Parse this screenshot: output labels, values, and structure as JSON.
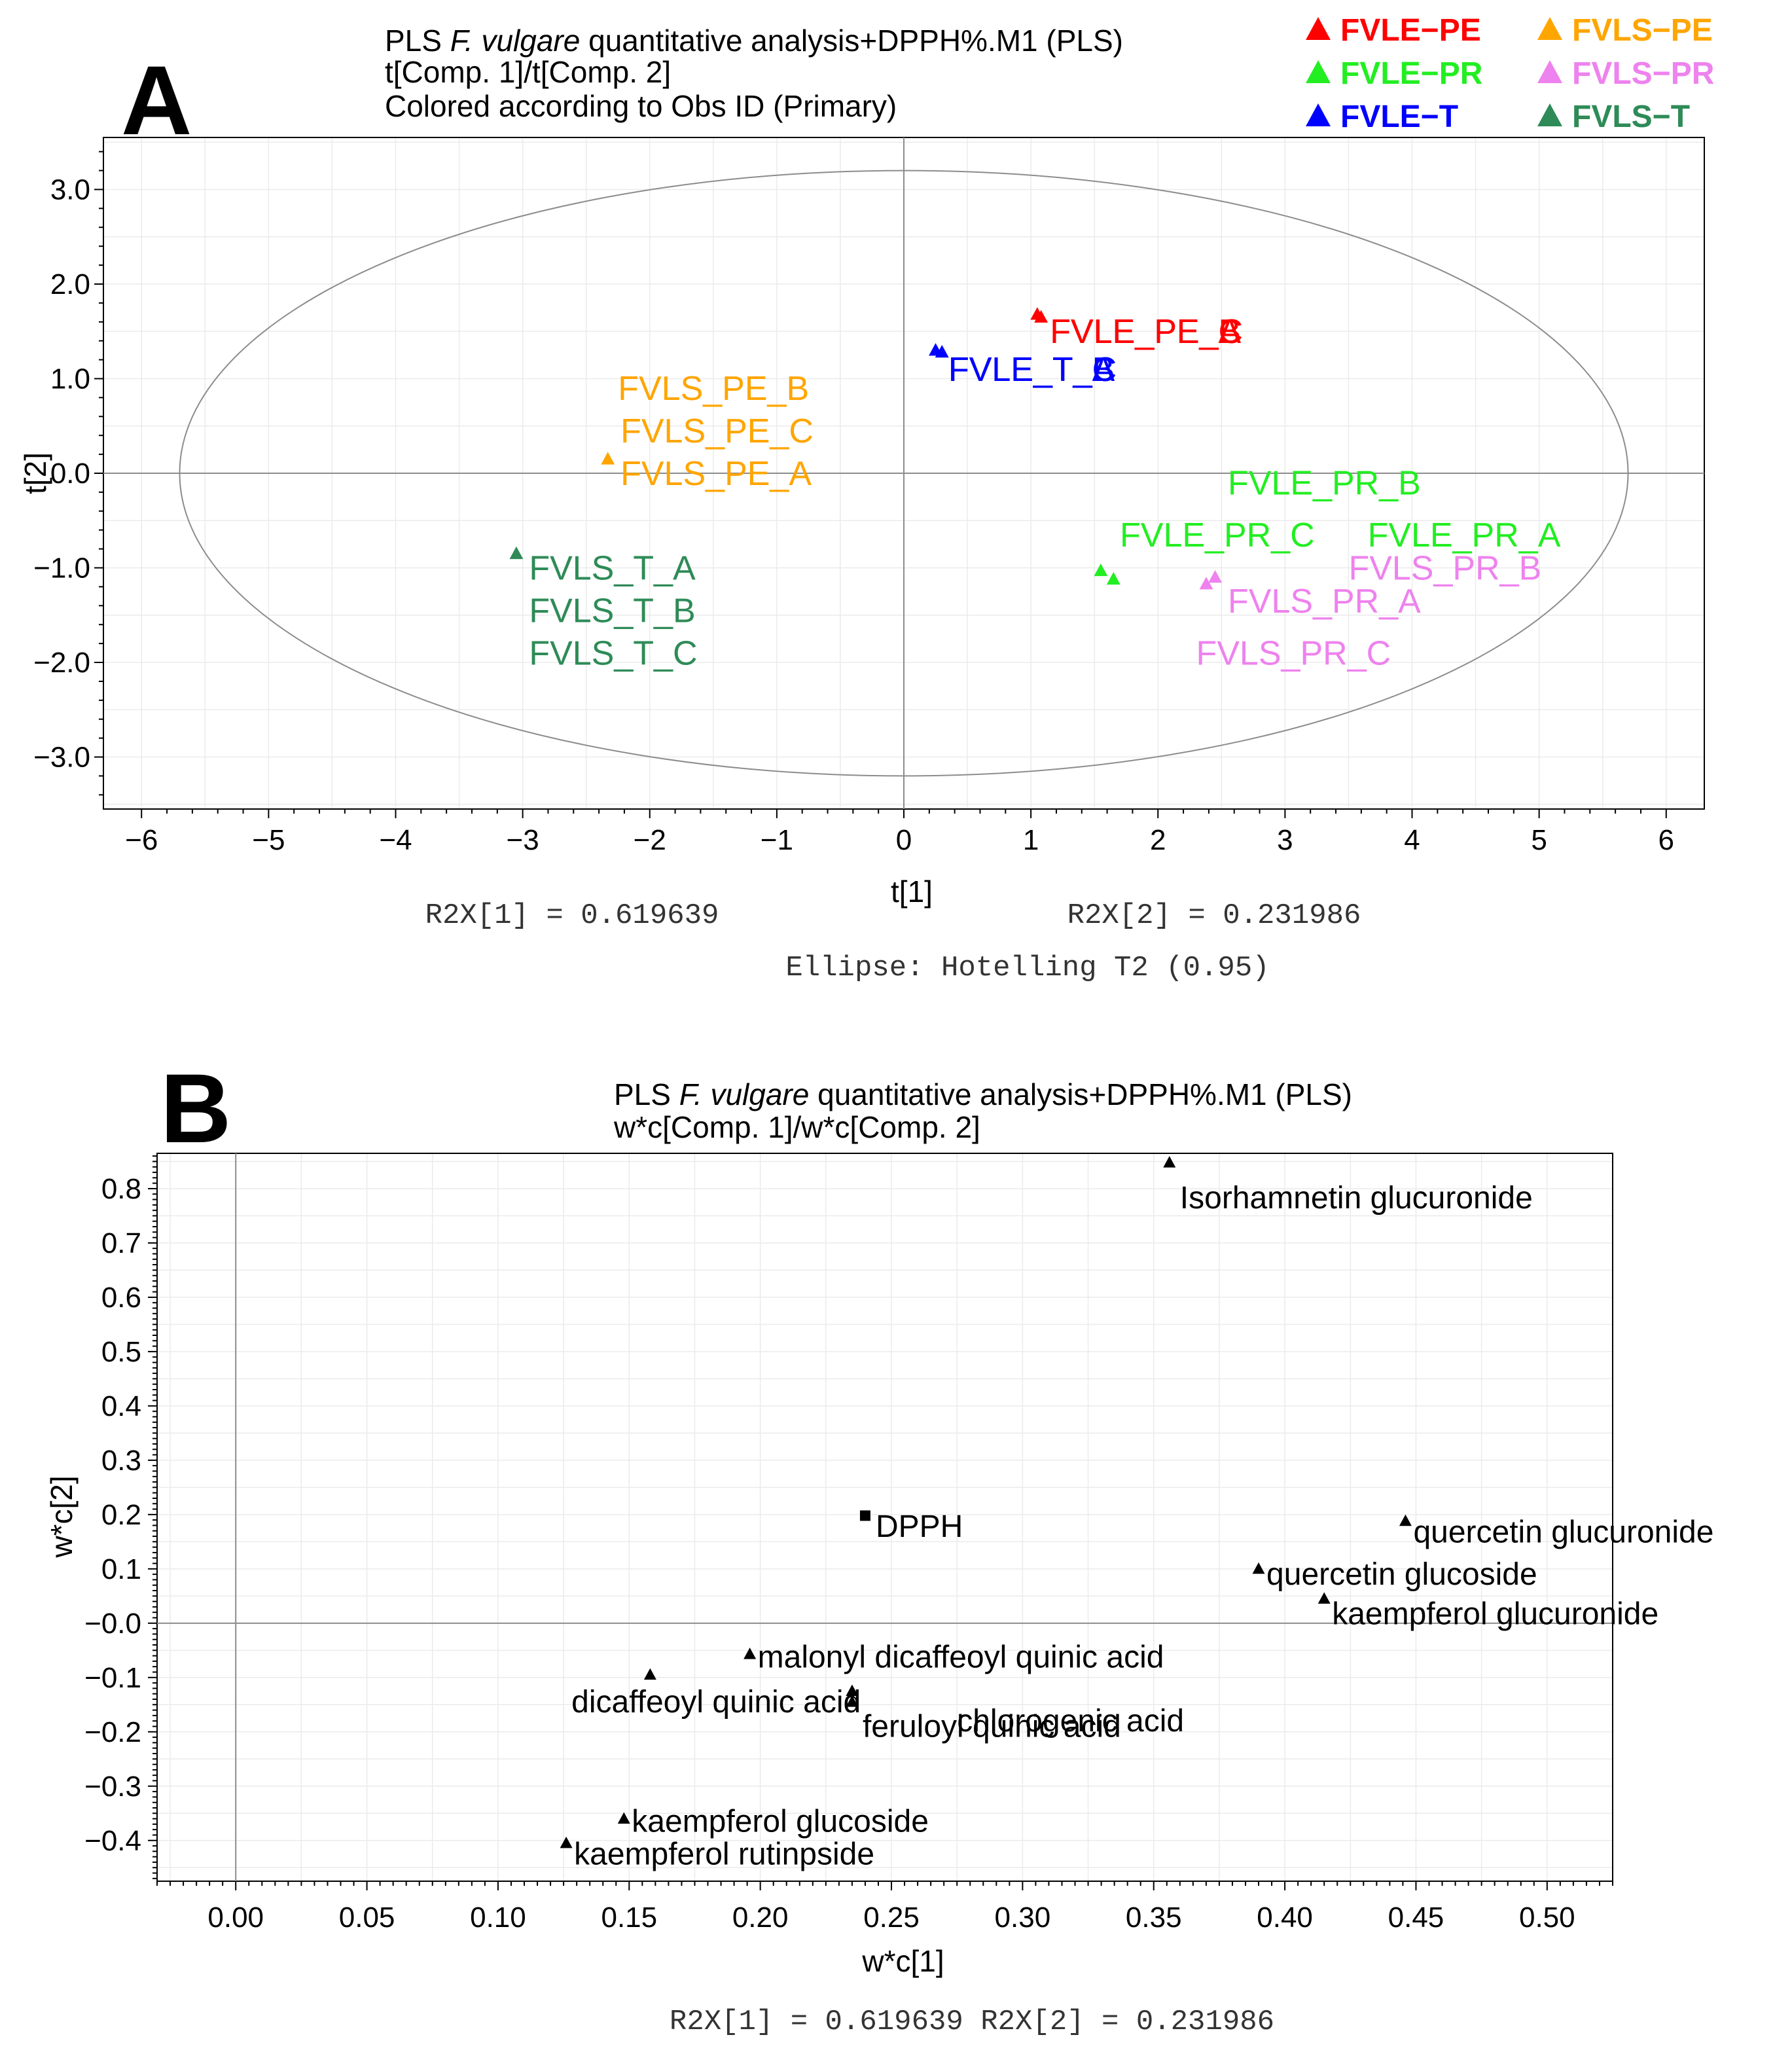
{
  "chart_data": [
    {
      "type": "scatter",
      "panel_letter": "A",
      "title_lines": {
        "prefix": "PLS ",
        "species": "F. vulgare",
        "suffix": " quantitative analysis+DPPH%.M1 (PLS)",
        "line2": "t[Comp. 1]/t[Comp. 2]",
        "line3": "Colored according to Obs ID (Primary)"
      },
      "xlabel": "t[1]",
      "ylabel": "t[2]",
      "xlim": [
        -6.3,
        6.3
      ],
      "ylim": [
        -3.55,
        3.55
      ],
      "xticks": [
        -6,
        -5,
        -4,
        -3,
        -2,
        -1,
        0,
        1,
        2,
        3,
        4,
        5,
        6
      ],
      "yticks": [
        3.0,
        2.0,
        1.0,
        0.0,
        -1.0,
        -2.0,
        -3.0
      ],
      "ytick_labels": [
        "3.0",
        "2.0",
        "1.0",
        "0.0",
        "−1.0",
        "−2.0",
        "−3.0"
      ],
      "xtick_labels": [
        "−6",
        "−5",
        "−4",
        "−3",
        "−2",
        "−1",
        "0",
        "1",
        "2",
        "3",
        "4",
        "5",
        "6"
      ],
      "ellipse": {
        "rx": 5.7,
        "ry": 3.2
      },
      "r2x1": "R2X[1] = 0.619639",
      "r2x2": "R2X[2] = 0.231986",
      "ellipse_note": "Ellipse: Hotelling T2 (0.95)",
      "grid": true,
      "legend_position": "top-right",
      "legend": [
        {
          "name": "FVLE−PE",
          "color": "#ff0000"
        },
        {
          "name": "FVLS−PE",
          "color": "#ffa500"
        },
        {
          "name": "FVLE−PR",
          "color": "#22ee22"
        },
        {
          "name": "FVLS−PR",
          "color": "#ee82ee"
        },
        {
          "name": "FVLE−T",
          "color": "#0000ff"
        },
        {
          "name": "FVLS−T",
          "color": "#2e8b57"
        }
      ],
      "points": [
        {
          "x": 1.05,
          "y": 1.68,
          "color": "#ff0000"
        },
        {
          "x": 1.08,
          "y": 1.65,
          "color": "#ff0000"
        },
        {
          "x": 0.25,
          "y": 1.3,
          "color": "#0000ff"
        },
        {
          "x": 0.3,
          "y": 1.28,
          "color": "#0000ff"
        },
        {
          "x": -2.33,
          "y": 0.15,
          "color": "#ffa500"
        },
        {
          "x": -3.05,
          "y": -0.85,
          "color": "#2e8b57"
        },
        {
          "x": 1.55,
          "y": -1.03,
          "color": "#22ee22"
        },
        {
          "x": 1.65,
          "y": -1.12,
          "color": "#22ee22"
        },
        {
          "x": 2.38,
          "y": -1.17,
          "color": "#ee82ee"
        },
        {
          "x": 2.45,
          "y": -1.1,
          "color": "#ee82ee"
        }
      ],
      "labels": [
        {
          "text": "FVLE_PE_B",
          "x": 1.15,
          "y": 1.5,
          "color": "#ff0000"
        },
        {
          "text": "FVLE_PE_A",
          "x": 1.15,
          "y": 1.5,
          "color": "#ff0000"
        },
        {
          "text": "FVLE_PE_C",
          "x": 1.15,
          "y": 1.5,
          "color": "#ff0000"
        },
        {
          "text": "FVLE_T_A",
          "x": 0.35,
          "y": 1.1,
          "color": "#0000ff"
        },
        {
          "text": "FVLE_T_B",
          "x": 0.35,
          "y": 1.1,
          "color": "#0000ff"
        },
        {
          "text": "FVLE_T_C",
          "x": 0.35,
          "y": 1.1,
          "color": "#0000ff"
        },
        {
          "text": "FVLS_PE_B",
          "x": -2.25,
          "y": 0.9,
          "color": "#ffa500"
        },
        {
          "text": "FVLS_PE_C",
          "x": -2.23,
          "y": 0.45,
          "color": "#ffa500"
        },
        {
          "text": "FVLS_PE_A",
          "x": -2.23,
          "y": 0.0,
          "color": "#ffa500"
        },
        {
          "text": "FVLS_T_A",
          "x": -2.95,
          "y": -1.0,
          "color": "#2e8b57"
        },
        {
          "text": "FVLS_T_B",
          "x": -2.95,
          "y": -1.45,
          "color": "#2e8b57"
        },
        {
          "text": "FVLS_T_C",
          "x": -2.95,
          "y": -1.9,
          "color": "#2e8b57"
        },
        {
          "text": "FVLE_PR_B",
          "x": 2.55,
          "y": -0.1,
          "color": "#22ee22"
        },
        {
          "text": "FVLE_PR_C",
          "x": 1.7,
          "y": -0.65,
          "color": "#22ee22"
        },
        {
          "text": "FVLE_PR_A",
          "x": 3.65,
          "y": -0.65,
          "color": "#22ee22"
        },
        {
          "text": "FVLS_PR_B",
          "x": 3.5,
          "y": -1.0,
          "color": "#ee82ee"
        },
        {
          "text": "FVLS_PR_A",
          "x": 2.55,
          "y": -1.35,
          "color": "#ee82ee"
        },
        {
          "text": "FVLS_PR_C",
          "x": 2.3,
          "y": -1.9,
          "color": "#ee82ee"
        }
      ]
    },
    {
      "type": "scatter",
      "panel_letter": "B",
      "title_lines": {
        "prefix": "PLS ",
        "species": "F. vulgare",
        "suffix": " quantitative analysis+DPPH%.M1 (PLS)",
        "line2": "w*c[Comp. 1]/w*c[Comp. 2]"
      },
      "xlabel": "w*c[1]",
      "ylabel": "w*c[2]",
      "xlim": [
        -0.03,
        0.525
      ],
      "ylim": [
        -0.475,
        0.865
      ],
      "xticks": [
        0.0,
        0.05,
        0.1,
        0.15,
        0.2,
        0.25,
        0.3,
        0.35,
        0.4,
        0.45,
        0.5
      ],
      "xtick_labels": [
        "0.00",
        "0.05",
        "0.10",
        "0.15",
        "0.20",
        "0.25",
        "0.30",
        "0.35",
        "0.40",
        "0.45",
        "0.50"
      ],
      "yticks": [
        0.8,
        0.7,
        0.6,
        0.5,
        0.4,
        0.3,
        0.2,
        0.1,
        0.0,
        -0.1,
        -0.2,
        -0.3,
        -0.4
      ],
      "ytick_labels": [
        "0.8",
        "0.7",
        "0.6",
        "0.5",
        "0.4",
        "0.3",
        "0.2",
        "0.1",
        "−0.0",
        "−0.1",
        "−0.2",
        "−0.3",
        "−0.4"
      ],
      "footer": "R2X[1] = 0.619639 R2X[2] = 0.231986",
      "grid": true,
      "points": [
        {
          "name": "Isorhamnetin glucuronide",
          "x": 0.356,
          "y": 0.848,
          "marker": "triangle",
          "label_dx": 0.004,
          "label_dy": -0.065
        },
        {
          "name": "DPPH",
          "x": 0.24,
          "y": 0.198,
          "marker": "square",
          "label_dx": 0.004,
          "label_dy": -0.02
        },
        {
          "name": "quercetin glucuronide",
          "x": 0.446,
          "y": 0.188,
          "marker": "triangle",
          "label_dx": 0.003,
          "label_dy": -0.02
        },
        {
          "name": "quercetin glucoside",
          "x": 0.39,
          "y": 0.1,
          "marker": "triangle",
          "label_dx": 0.003,
          "label_dy": -0.01
        },
        {
          "name": "kaempferol glucuronide",
          "x": 0.415,
          "y": 0.045,
          "marker": "triangle",
          "label_dx": 0.003,
          "label_dy": -0.028
        },
        {
          "name": "malonyl dicaffeoyl quinic acid",
          "x": 0.196,
          "y": -0.057,
          "marker": "triangle",
          "label_dx": 0.003,
          "label_dy": -0.005
        },
        {
          "name": "dicaffeoyl quinic acid",
          "x": 0.158,
          "y": -0.095,
          "marker": "triangle",
          "label_dx": -0.03,
          "label_dy": -0.05
        },
        {
          "name": "chlorogenic acid",
          "x": 0.235,
          "y": -0.125,
          "marker": "triangle",
          "label_dx": 0.04,
          "label_dy": -0.055
        },
        {
          "name": "feruloyl quinic acid",
          "x": 0.235,
          "y": -0.145,
          "marker": "triangle",
          "label_dx": 0.004,
          "label_dy": -0.045
        },
        {
          "name": "kaempferol glucoside",
          "x": 0.148,
          "y": -0.36,
          "marker": "triangle",
          "label_dx": 0.003,
          "label_dy": -0.005
        },
        {
          "name": "kaempferol rutinpside",
          "x": 0.126,
          "y": -0.405,
          "marker": "triangle",
          "label_dx": 0.003,
          "label_dy": -0.02
        }
      ]
    }
  ]
}
